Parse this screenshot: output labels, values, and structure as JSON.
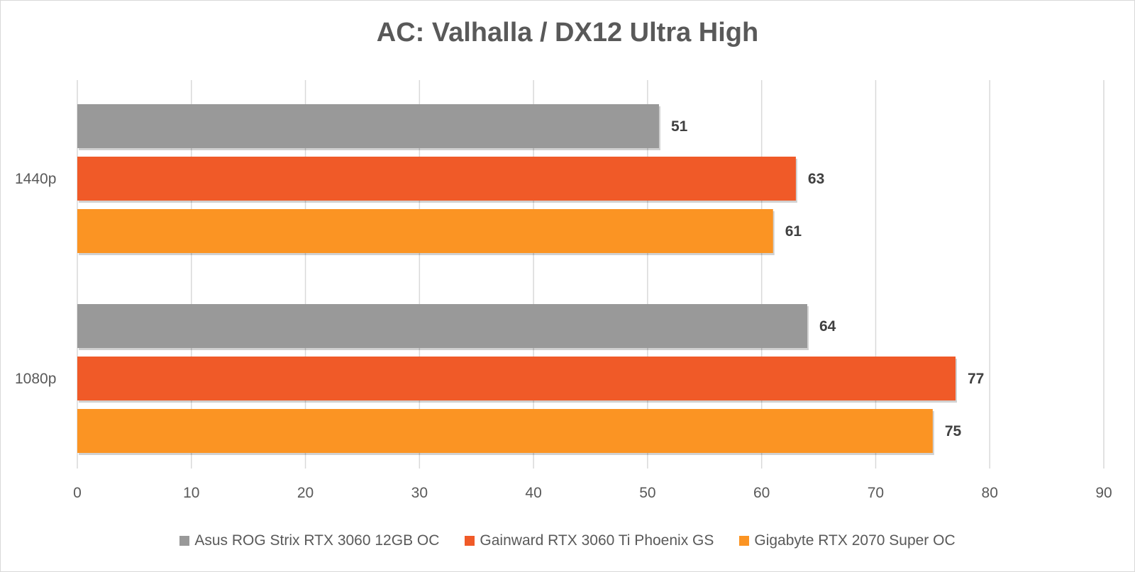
{
  "chart_data": {
    "type": "bar",
    "orientation": "horizontal",
    "title": "AC: Valhalla / DX12 Ultra High",
    "categories": [
      "1440p",
      "1080p"
    ],
    "series": [
      {
        "name": "Asus ROG Strix RTX 3060 12GB OC",
        "color": "#999999",
        "values": [
          51,
          64
        ]
      },
      {
        "name": "Gainward RTX 3060 Ti Phoenix GS",
        "color": "#f05a28",
        "values": [
          63,
          77
        ]
      },
      {
        "name": "Gigabyte RTX 2070 Super OC",
        "color": "#fb9423",
        "values": [
          61,
          75
        ]
      }
    ],
    "xlim": [
      0,
      90
    ],
    "x_ticks": [
      "0",
      "10",
      "20",
      "30",
      "40",
      "50",
      "60",
      "70",
      "80",
      "90"
    ],
    "grid": true,
    "legend_position": "bottom"
  }
}
